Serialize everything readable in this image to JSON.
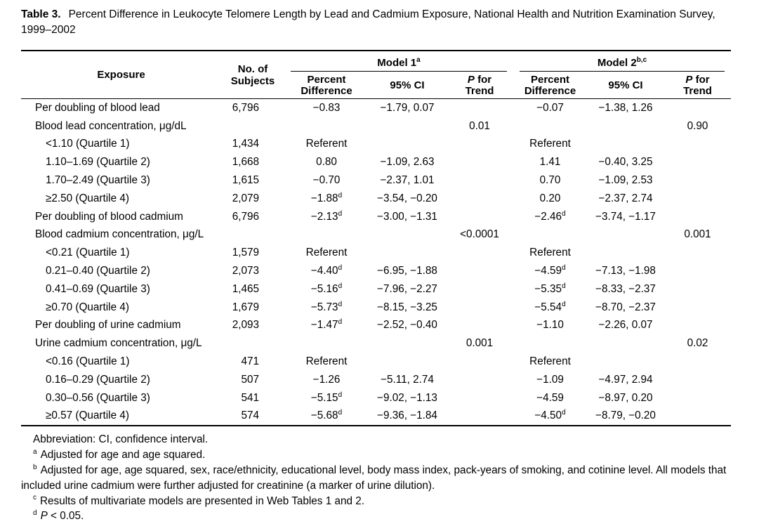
{
  "title": {
    "label": "Table 3.",
    "line1": "Percent Difference in Leukocyte Telomere Length by Lead and Cadmium Exposure, National Health and Nutrition Examination Survey,",
    "line2": "1999–2002"
  },
  "table": {
    "headers": {
      "exposure": "Exposure",
      "subjects": "No. of Subjects",
      "model1": {
        "label": "Model 1",
        "sup": "a"
      },
      "model2": {
        "label": "Model 2",
        "sup": "b,c"
      },
      "percent_difference": "Percent Difference",
      "ci": "95% CI",
      "p_italic": "P",
      "p_rest": " for Trend"
    },
    "rows": [
      {
        "label": "Per doubling of blood lead",
        "indent": false,
        "n": "6,796",
        "m1_pd": "−0.83",
        "m1_ci": "−1.79, 0.07",
        "m1_p": "",
        "m2_pd": "−0.07",
        "m2_ci": "−1.38, 1.26",
        "m2_p": ""
      },
      {
        "label": "Blood lead concentration, μg/dL",
        "indent": false,
        "n": "",
        "m1_pd": "",
        "m1_ci": "",
        "m1_p": "0.01",
        "m2_pd": "",
        "m2_ci": "",
        "m2_p": "0.90"
      },
      {
        "label": "<1.10 (Quartile 1)",
        "indent": true,
        "n": "1,434",
        "m1_pd": "Referent",
        "m1_ci": "",
        "m1_p": "",
        "m2_pd": "Referent",
        "m2_ci": "",
        "m2_p": ""
      },
      {
        "label": "1.10–1.69 (Quartile 2)",
        "indent": true,
        "n": "1,668",
        "m1_pd": "0.80",
        "m1_ci": "−1.09, 2.63",
        "m1_p": "",
        "m2_pd": "1.41",
        "m2_ci": "−0.40, 3.25",
        "m2_p": ""
      },
      {
        "label": "1.70–2.49 (Quartile 3)",
        "indent": true,
        "n": "1,615",
        "m1_pd": "−0.70",
        "m1_ci": "−2.37, 1.01",
        "m1_p": "",
        "m2_pd": "0.70",
        "m2_ci": "−1.09, 2.53",
        "m2_p": ""
      },
      {
        "label": "≥2.50 (Quartile 4)",
        "indent": true,
        "n": "2,079",
        "m1_pd": "−1.88^d",
        "m1_ci": "−3.54, −0.20",
        "m1_p": "",
        "m2_pd": "0.20",
        "m2_ci": "−2.37, 2.74",
        "m2_p": ""
      },
      {
        "label": "Per doubling of blood cadmium",
        "indent": false,
        "n": "6,796",
        "m1_pd": "−2.13^d",
        "m1_ci": "−3.00, −1.31",
        "m1_p": "",
        "m2_pd": "−2.46^d",
        "m2_ci": "−3.74, −1.17",
        "m2_p": ""
      },
      {
        "label": "Blood cadmium concentration, μg/L",
        "indent": false,
        "n": "",
        "m1_pd": "",
        "m1_ci": "",
        "m1_p": "<0.0001",
        "m2_pd": "",
        "m2_ci": "",
        "m2_p": "0.001"
      },
      {
        "label": "<0.21 (Quartile 1)",
        "indent": true,
        "n": "1,579",
        "m1_pd": "Referent",
        "m1_ci": "",
        "m1_p": "",
        "m2_pd": "Referent",
        "m2_ci": "",
        "m2_p": ""
      },
      {
        "label": "0.21–0.40 (Quartile 2)",
        "indent": true,
        "n": "2,073",
        "m1_pd": "−4.40^d",
        "m1_ci": "−6.95, −1.88",
        "m1_p": "",
        "m2_pd": "−4.59^d",
        "m2_ci": "−7.13, −1.98",
        "m2_p": ""
      },
      {
        "label": "0.41–0.69 (Quartile 3)",
        "indent": true,
        "n": "1,465",
        "m1_pd": "−5.16^d",
        "m1_ci": "−7.96, −2.27",
        "m1_p": "",
        "m2_pd": "−5.35^d",
        "m2_ci": "−8.33, −2.37",
        "m2_p": ""
      },
      {
        "label": "≥0.70 (Quartile 4)",
        "indent": true,
        "n": "1,679",
        "m1_pd": "−5.73^d",
        "m1_ci": "−8.15, −3.25",
        "m1_p": "",
        "m2_pd": "−5.54^d",
        "m2_ci": "−8.70, −2.37",
        "m2_p": ""
      },
      {
        "label": "Per doubling of urine cadmium",
        "indent": false,
        "n": "2,093",
        "m1_pd": "−1.47^d",
        "m1_ci": "−2.52, −0.40",
        "m1_p": "",
        "m2_pd": "−1.10",
        "m2_ci": "−2.26, 0.07",
        "m2_p": ""
      },
      {
        "label": "Urine cadmium concentration, μg/L",
        "indent": false,
        "n": "",
        "m1_pd": "",
        "m1_ci": "",
        "m1_p": "0.001",
        "m2_pd": "",
        "m2_ci": "",
        "m2_p": "0.02"
      },
      {
        "label": "<0.16 (Quartile 1)",
        "indent": true,
        "n": "471",
        "m1_pd": "Referent",
        "m1_ci": "",
        "m1_p": "",
        "m2_pd": "Referent",
        "m2_ci": "",
        "m2_p": ""
      },
      {
        "label": "0.16–0.29 (Quartile 2)",
        "indent": true,
        "n": "507",
        "m1_pd": "−1.26",
        "m1_ci": "−5.11, 2.74",
        "m1_p": "",
        "m2_pd": "−1.09",
        "m2_ci": "−4.97, 2.94",
        "m2_p": ""
      },
      {
        "label": "0.30–0.56 (Quartile 3)",
        "indent": true,
        "n": "541",
        "m1_pd": "−5.15^d",
        "m1_ci": "−9.02, −1.13",
        "m1_p": "",
        "m2_pd": "−4.59",
        "m2_ci": "−8.97, 0.20",
        "m2_p": ""
      },
      {
        "label": "≥0.57 (Quartile 4)",
        "indent": true,
        "n": "574",
        "m1_pd": "−5.68^d",
        "m1_ci": "−9.36, −1.84",
        "m1_p": "",
        "m2_pd": "−4.50^d",
        "m2_ci": "−8.79, −0.20",
        "m2_p": ""
      }
    ]
  },
  "footnotes": {
    "abbreviation": "Abbreviation: CI, confidence interval.",
    "items": [
      {
        "sup": "a",
        "text": "Adjusted for age and age squared."
      },
      {
        "sup": "b",
        "text": "Adjusted for age, age squared, sex, race/ethnicity, educational level, body mass index, pack-years of smoking, and cotinine level. All models that included urine cadmium were further adjusted for creatinine (a marker of urine dilution)."
      },
      {
        "sup": "c",
        "text": "Results of multivariate models are presented in Web Tables 1 and 2."
      },
      {
        "sup": "d",
        "italic_lead": "P",
        "text": " < 0.05."
      }
    ]
  }
}
